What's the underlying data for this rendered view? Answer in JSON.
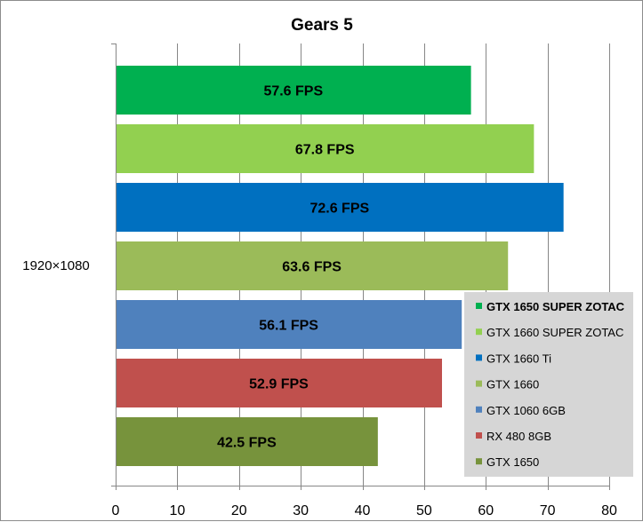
{
  "chart_data": {
    "type": "bar",
    "orientation": "horizontal",
    "title": "Gears 5",
    "categories": [
      "1920×1080"
    ],
    "xlabel": "",
    "ylabel": "",
    "xlim": [
      0,
      80
    ],
    "xticks": [
      0,
      10,
      20,
      30,
      40,
      50,
      60,
      70,
      80
    ],
    "grid": true,
    "legend_position": "bottom-right",
    "series": [
      {
        "name": "GTX 1650 SUPER ZOTAC",
        "value": 57.6,
        "label": "57.6 FPS",
        "color": "#00b050",
        "bold": true
      },
      {
        "name": "GTX 1660 SUPER ZOTAC",
        "value": 67.8,
        "label": "67.8 FPS",
        "color": "#92d050",
        "bold": false
      },
      {
        "name": "GTX 1660 Ti",
        "value": 72.6,
        "label": "72.6 FPS",
        "color": "#0070c0",
        "bold": false
      },
      {
        "name": "GTX 1660",
        "value": 63.6,
        "label": "63.6 FPS",
        "color": "#9bbb59",
        "bold": false
      },
      {
        "name": "GTX 1060 6GB",
        "value": 56.1,
        "label": "56.1 FPS",
        "color": "#4f81bd",
        "bold": false
      },
      {
        "name": "RX 480 8GB",
        "value": 52.9,
        "label": "52.9 FPS",
        "color": "#c0504d",
        "bold": false
      },
      {
        "name": "GTX 1650",
        "value": 42.5,
        "label": "42.5 FPS",
        "color": "#77933c",
        "bold": false
      }
    ]
  }
}
